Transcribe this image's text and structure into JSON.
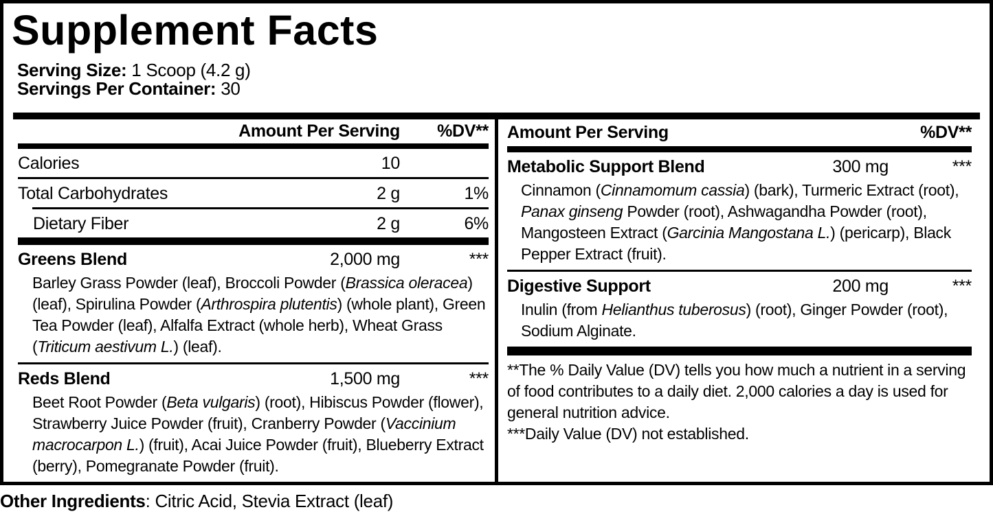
{
  "colors": {
    "ink": "#000000",
    "paper": "#ffffff"
  },
  "header": {
    "title": "Supplement Facts",
    "serving_size_label": "Serving Size:",
    "serving_size_value": " 1 Scoop (4.2 g)",
    "servings_per_container_label": "Servings Per Container:",
    "servings_per_container_value": " 30"
  },
  "table": {
    "amount_header": "Amount Per Serving",
    "dv_header": "%DV**",
    "left": {
      "nutrients": [
        {
          "name": "Calories",
          "amount": "10",
          "dv": ""
        },
        {
          "name": "Total Carbohydrates",
          "amount": "2 g",
          "dv": "1%"
        },
        {
          "name": "Dietary Fiber",
          "amount": "2 g",
          "dv": "6%"
        }
      ],
      "blends": [
        {
          "name": "Greens Blend",
          "amount": "2,000 mg",
          "dv": "***",
          "ingredients": [
            {
              "t": "Barley Grass Powder (leaf), Broccoli Powder ("
            },
            {
              "t": "Brassica oleracea",
              "i": true
            },
            {
              "t": ") (leaf), Spirulina Powder ("
            },
            {
              "t": "Arthrospira plutentis",
              "i": true
            },
            {
              "t": ") (whole plant), Green Tea Powder (leaf), Alfalfa Extract (whole herb), Wheat Grass ("
            },
            {
              "t": "Triticum aestivum L.",
              "i": true
            },
            {
              "t": ") (leaf)."
            }
          ]
        },
        {
          "name": "Reds Blend",
          "amount": "1,500 mg",
          "dv": "***",
          "ingredients": [
            {
              "t": "Beet Root Powder ("
            },
            {
              "t": "Beta vulgaris",
              "i": true
            },
            {
              "t": ") (root), Hibiscus Powder (flower), Strawberry Juice Powder (fruit), Cranberry Powder ("
            },
            {
              "t": "Vaccinium macrocarpon L.",
              "i": true
            },
            {
              "t": ") (fruit), Acai Juice Powder (fruit), Blueberry Extract (berry), Pomegranate Powder (fruit)."
            }
          ]
        }
      ]
    },
    "right": {
      "blends": [
        {
          "name": "Metabolic Support Blend",
          "amount": "300 mg",
          "dv": "***",
          "ingredients": [
            {
              "t": "Cinnamon ("
            },
            {
              "t": "Cinnamomum cassia",
              "i": true
            },
            {
              "t": ") (bark), Turmeric Extract (root), "
            },
            {
              "t": "Panax ginseng",
              "i": true
            },
            {
              "t": " Powder (root), Ashwagandha Powder (root), Mangosteen Extract ("
            },
            {
              "t": "Garcinia Mangostana L.",
              "i": true
            },
            {
              "t": ") (pericarp), Black Pepper Extract (fruit)."
            }
          ]
        },
        {
          "name": "Digestive Support",
          "amount": "200 mg",
          "dv": "***",
          "ingredients": [
            {
              "t": "Inulin (from "
            },
            {
              "t": "Helianthus tuberosus",
              "i": true
            },
            {
              "t": ") (root), Ginger Powder (root), Sodium Alginate."
            }
          ]
        }
      ],
      "footnotes": [
        "**The % Daily Value (DV) tells you how much a nutrient in a serving of food contributes to a daily diet. 2,000 calories a day is used for general nutrition advice.",
        "***Daily Value (DV) not established."
      ]
    }
  },
  "other_ingredients": {
    "label": "Other Ingredients",
    "text": ": Citric Acid, Stevia Extract (leaf)"
  }
}
